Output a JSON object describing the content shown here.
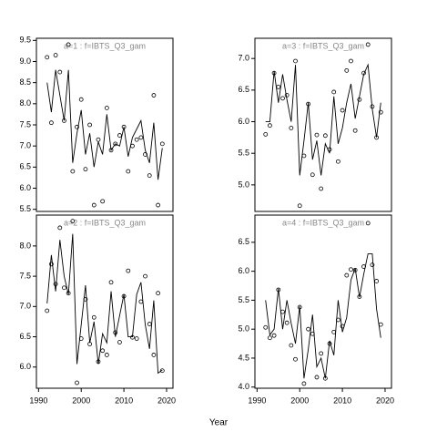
{
  "xlabel": "Year",
  "chart_data": [
    {
      "type": "scatter",
      "title": "a=1  :  f=IBTS_Q3_gam",
      "x": [
        1992,
        1993,
        1994,
        1995,
        1996,
        1997,
        1998,
        1999,
        2000,
        2001,
        2002,
        2003,
        2004,
        2005,
        2006,
        2007,
        2008,
        2009,
        2010,
        2011,
        2012,
        2013,
        2014,
        2015,
        2016,
        2017,
        2018,
        2019
      ],
      "series": [
        {
          "style": "points",
          "color": "#000000",
          "values": [
            9.1,
            7.55,
            9.15,
            8.75,
            7.6,
            9.4,
            6.4,
            7.45,
            8.1,
            6.45,
            7.5,
            5.6,
            7.15,
            5.69,
            7.9,
            6.9,
            7.05,
            7.25,
            7.45,
            6.4,
            7.0,
            7.15,
            7.2,
            6.8,
            6.3,
            8.2,
            5.6,
            7.05
          ]
        },
        {
          "style": "line",
          "color": "#000000",
          "values": [
            8.5,
            7.8,
            8.8,
            8.2,
            7.6,
            8.8,
            6.6,
            7.3,
            7.85,
            6.8,
            7.3,
            6.5,
            7.1,
            6.8,
            7.75,
            6.9,
            7.05,
            7.0,
            7.45,
            6.75,
            7.2,
            7.4,
            7.6,
            6.9,
            6.6,
            7.55,
            6.2,
            6.95
          ]
        }
      ],
      "xlim": [
        1989.5,
        2021.5
      ],
      "ylim": [
        5.45,
        9.55
      ],
      "yticks": [
        5.5,
        {
          "value": 6,
          "label": "6.0"
        },
        6.5,
        {
          "value": 7,
          "label": "7.0"
        },
        7.5,
        {
          "value": 8,
          "label": "8.0"
        },
        8.5,
        {
          "value": 9,
          "label": "9.0"
        },
        9.5
      ]
    },
    {
      "type": "scatter",
      "title": "a=3  :  f=IBTS_Q3_gam",
      "x": [
        1992,
        1993,
        1994,
        1995,
        1996,
        1997,
        1998,
        1999,
        2000,
        2001,
        2002,
        2003,
        2004,
        2005,
        2006,
        2007,
        2008,
        2009,
        2010,
        2011,
        2012,
        2013,
        2014,
        2015,
        2016,
        2017,
        2018,
        2019
      ],
      "series": [
        {
          "style": "points",
          "color": "#000000",
          "values": [
            5.8,
            5.94,
            6.77,
            6.55,
            6.37,
            6.42,
            5.9,
            6.96,
            4.67,
            5.46,
            6.28,
            5.16,
            5.79,
            4.94,
            5.78,
            5.56,
            6.47,
            5.37,
            6.18,
            6.81,
            6.96,
            5.86,
            6.35,
            6.77,
            7.22,
            6.24,
            5.75,
            6.15
          ]
        },
        {
          "style": "line",
          "color": "#000000",
          "values": [
            6.0,
            6.0,
            6.8,
            6.3,
            6.75,
            6.35,
            6.0,
            6.9,
            5.15,
            5.7,
            6.3,
            5.4,
            5.7,
            5.15,
            5.65,
            5.5,
            6.4,
            5.65,
            5.9,
            6.3,
            6.6,
            6.05,
            6.4,
            6.75,
            6.9,
            6.2,
            5.75,
            6.3
          ]
        }
      ],
      "xlim": [
        1989.5,
        2021.5
      ],
      "ylim": [
        4.58,
        7.32
      ],
      "yticks": [
        {
          "value": 5,
          "label": "5.0"
        },
        5.5,
        {
          "value": 6,
          "label": "6.0"
        },
        6.5,
        {
          "value": 7,
          "label": "7.0"
        }
      ]
    },
    {
      "type": "scatter",
      "title": "a=2  :  f=IBTS_Q3_gam",
      "x": [
        1992,
        1993,
        1994,
        1995,
        1996,
        1997,
        1998,
        1999,
        2000,
        2001,
        2002,
        2003,
        2004,
        2005,
        2006,
        2007,
        2008,
        2009,
        2010,
        2011,
        2012,
        2013,
        2014,
        2015,
        2016,
        2017,
        2018,
        2019
      ],
      "series": [
        {
          "style": "points",
          "color": "#000000",
          "values": [
            6.93,
            7.7,
            7.37,
            8.3,
            7.31,
            7.22,
            8.41,
            5.74,
            6.47,
            7.12,
            6.38,
            6.82,
            6.09,
            6.27,
            6.2,
            7.4,
            6.57,
            6.41,
            7.17,
            7.59,
            6.49,
            6.47,
            7.08,
            7.5,
            6.71,
            6.2,
            7.22,
            5.94
          ]
        },
        {
          "style": "line",
          "color": "#000000",
          "values": [
            7.05,
            7.85,
            7.25,
            8.1,
            7.5,
            7.2,
            8.2,
            6.05,
            6.7,
            7.35,
            6.4,
            6.75,
            6.05,
            6.55,
            6.4,
            7.25,
            6.5,
            6.85,
            7.2,
            6.5,
            6.5,
            7.2,
            7.4,
            6.7,
            6.3,
            7.1,
            5.9,
            5.95
          ]
        }
      ],
      "xlim": [
        1989.5,
        2021.5
      ],
      "ylim": [
        5.65,
        8.51
      ],
      "xticks": [
        1990,
        2000,
        2010,
        2020
      ],
      "yticks": [
        {
          "value": 6,
          "label": "6.0"
        },
        6.5,
        {
          "value": 7,
          "label": "7.0"
        },
        7.5,
        {
          "value": 8,
          "label": "8.0"
        }
      ]
    },
    {
      "type": "scatter",
      "title": "a=4  :  f=IBTS_Q3_gam",
      "x": [
        1992,
        1993,
        1994,
        1995,
        1996,
        1997,
        1998,
        1999,
        2000,
        2001,
        2002,
        2003,
        2004,
        2005,
        2006,
        2007,
        2008,
        2009,
        2010,
        2011,
        2012,
        2013,
        2014,
        2015,
        2016,
        2017,
        2018,
        2019
      ],
      "series": [
        {
          "style": "points",
          "color": "#000000",
          "values": [
            5.03,
            4.85,
            4.89,
            5.68,
            5.3,
            5.11,
            4.72,
            4.48,
            5.38,
            4.06,
            5.0,
            4.92,
            4.17,
            4.58,
            4.15,
            4.75,
            4.95,
            5.16,
            5.05,
            5.93,
            6.03,
            6.02,
            5.56,
            6.08,
            6.83,
            6.11,
            5.83,
            5.08
          ]
        },
        {
          "style": "line",
          "color": "#000000",
          "values": [
            5.5,
            4.9,
            5.0,
            5.7,
            5.0,
            5.5,
            5.1,
            4.75,
            5.4,
            4.15,
            4.65,
            5.25,
            4.35,
            4.5,
            4.15,
            4.8,
            4.55,
            5.5,
            4.95,
            5.2,
            5.85,
            6.05,
            5.55,
            5.95,
            6.3,
            6.3,
            5.35,
            4.85
          ]
        }
      ],
      "xlim": [
        1989.5,
        2021.5
      ],
      "ylim": [
        3.98,
        6.97
      ],
      "xticks": [
        1990,
        2000,
        2010,
        2020
      ],
      "yticks": [
        {
          "value": 4,
          "label": "4.0"
        },
        4.5,
        {
          "value": 5,
          "label": "5.0"
        },
        5.5,
        {
          "value": 6,
          "label": "6.0"
        },
        6.5
      ]
    }
  ]
}
